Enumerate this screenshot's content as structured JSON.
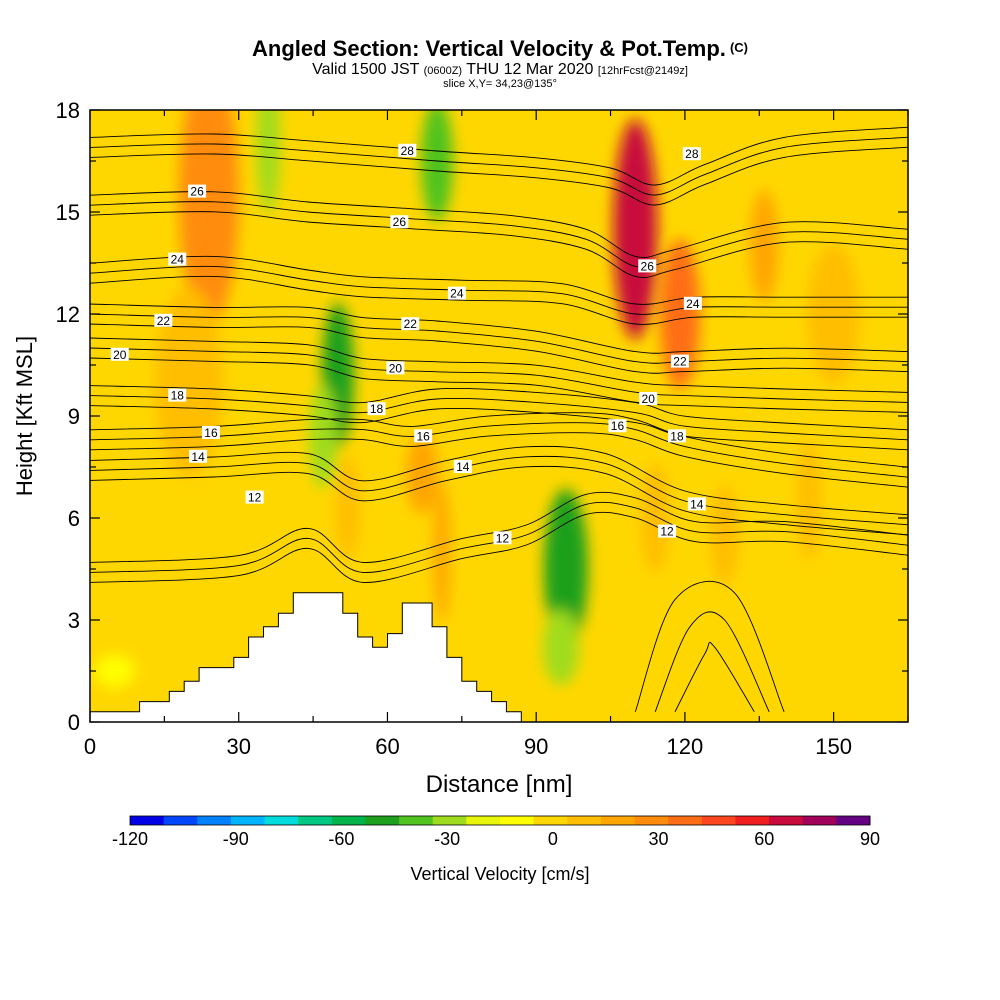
{
  "title": {
    "main": "Angled Section: Vertical Velocity & Pot.Temp.",
    "copyright": "(C)",
    "valid_prefix": "Valid 1500 JST",
    "utc": "(0600Z)",
    "valid_date": "THU 12 Mar 2020",
    "forecast": "[12hrFcst@2149z]",
    "slice": "slice X,Y= 34,23@135°"
  },
  "chart_data": {
    "type": "heatmap",
    "xlabel": "Distance [nm]",
    "ylabel": "Height [Kft MSL]",
    "xlim": [
      0,
      165
    ],
    "ylim": [
      0,
      18
    ],
    "x_ticks": [
      0,
      30,
      60,
      90,
      120,
      150
    ],
    "y_ticks": [
      0,
      3,
      6,
      9,
      12,
      15,
      18
    ],
    "shading_variable": "Vertical Velocity [cm/s]",
    "contour_variable": "Potential Temperature",
    "colorbar": {
      "label": "Vertical Velocity [cm/s]",
      "tick_labels": [
        "-120",
        "-90",
        "-60",
        "-30",
        "0",
        "30",
        "60",
        "90"
      ],
      "bins": [
        -120,
        -110,
        -100,
        -90,
        -80,
        -70,
        -60,
        -50,
        -40,
        -30,
        -20,
        -10,
        0,
        10,
        20,
        30,
        40,
        50,
        60,
        70,
        80,
        90
      ],
      "colors": [
        "#0000e6",
        "#0046ff",
        "#0082ff",
        "#00b4ff",
        "#00dcdc",
        "#00c882",
        "#00b44b",
        "#1ea01e",
        "#50c31e",
        "#a0dc1e",
        "#e6f50a",
        "#ffff00",
        "#ffd700",
        "#ffbe00",
        "#ffa500",
        "#ff8c0a",
        "#ff6e14",
        "#ff461e",
        "#f01e1e",
        "#c80a3c",
        "#a0005a",
        "#640082"
      ]
    },
    "velocity_features": [
      {
        "x": 110,
        "y": 14.5,
        "value": 75
      },
      {
        "x": 119,
        "y": 12,
        "value": 45
      },
      {
        "x": 24,
        "y": 15.5,
        "value": 32
      },
      {
        "x": 20,
        "y": 10,
        "value": 18
      },
      {
        "x": 136,
        "y": 14,
        "value": 22
      },
      {
        "x": 150,
        "y": 12,
        "value": 18
      },
      {
        "x": 67,
        "y": 7.3,
        "value": 28
      },
      {
        "x": 52,
        "y": 6.3,
        "value": 18
      },
      {
        "x": 71,
        "y": 5,
        "value": 24
      },
      {
        "x": 114,
        "y": 6,
        "value": 15
      },
      {
        "x": 128,
        "y": 5.5,
        "value": 14
      },
      {
        "x": 145,
        "y": 6.5,
        "value": 15
      },
      {
        "x": 50,
        "y": 10.2,
        "value": -48
      },
      {
        "x": 47,
        "y": 8.4,
        "value": -28
      },
      {
        "x": 36,
        "y": 17,
        "value": -22
      },
      {
        "x": 70,
        "y": 16.5,
        "value": -32
      },
      {
        "x": 96,
        "y": 4.5,
        "value": -42
      },
      {
        "x": 95,
        "y": 2.2,
        "value": -22
      },
      {
        "x": 5,
        "y": 1.5,
        "value": -5
      },
      {
        "x": 162,
        "y": 11,
        "value": 4
      }
    ],
    "theta_contours": [
      {
        "label": "12",
        "points": [
          [
            0,
            4.4
          ],
          [
            30,
            4.6
          ],
          [
            44,
            5.4
          ],
          [
            55,
            4.4
          ],
          [
            75,
            5.1
          ],
          [
            88,
            5.5
          ],
          [
            100,
            6.4
          ],
          [
            110,
            6.3
          ],
          [
            122,
            5.6
          ],
          [
            140,
            5.6
          ],
          [
            165,
            5.2
          ]
        ]
      },
      {
        "label": "14",
        "points": [
          [
            0,
            7.4
          ],
          [
            25,
            7.5
          ],
          [
            44,
            7.6
          ],
          [
            55,
            6.8
          ],
          [
            72,
            7.4
          ],
          [
            88,
            7.8
          ],
          [
            104,
            7.6
          ],
          [
            120,
            6.5
          ],
          [
            140,
            6.1
          ],
          [
            165,
            5.8
          ]
        ]
      },
      {
        "label": "16",
        "points": [
          [
            0,
            8.3
          ],
          [
            25,
            8.4
          ],
          [
            44,
            8.6
          ],
          [
            55,
            8.6
          ],
          [
            65,
            8.4
          ],
          [
            80,
            8.7
          ],
          [
            100,
            8.8
          ],
          [
            110,
            8.6
          ],
          [
            120,
            8.1
          ],
          [
            140,
            7.6
          ],
          [
            165,
            7.2
          ]
        ]
      },
      {
        "label": "18",
        "points": [
          [
            0,
            9.6
          ],
          [
            25,
            9.5
          ],
          [
            44,
            9.3
          ],
          [
            55,
            9.1
          ],
          [
            70,
            9.5
          ],
          [
            90,
            9.4
          ],
          [
            110,
            9.1
          ],
          [
            120,
            8.7
          ],
          [
            140,
            8.5
          ],
          [
            165,
            8.3
          ]
        ]
      },
      {
        "label": "20",
        "points": [
          [
            0,
            11.0
          ],
          [
            25,
            10.9
          ],
          [
            44,
            10.8
          ],
          [
            55,
            10.4
          ],
          [
            70,
            10.3
          ],
          [
            90,
            10.2
          ],
          [
            110,
            9.7
          ],
          [
            120,
            9.6
          ],
          [
            140,
            9.5
          ],
          [
            165,
            9.4
          ]
        ]
      },
      {
        "label": "22",
        "points": [
          [
            0,
            12.0
          ],
          [
            25,
            11.9
          ],
          [
            44,
            11.9
          ],
          [
            55,
            11.6
          ],
          [
            70,
            11.5
          ],
          [
            90,
            11.2
          ],
          [
            110,
            10.6
          ],
          [
            120,
            10.6
          ],
          [
            140,
            10.7
          ],
          [
            165,
            10.6
          ]
        ]
      },
      {
        "label": "24",
        "points": [
          [
            0,
            13.2
          ],
          [
            25,
            13.4
          ],
          [
            44,
            13.0
          ],
          [
            55,
            12.8
          ],
          [
            75,
            12.7
          ],
          [
            95,
            12.6
          ],
          [
            110,
            12.0
          ],
          [
            122,
            12.2
          ],
          [
            140,
            12.2
          ],
          [
            165,
            12.2
          ]
        ]
      },
      {
        "label": "26",
        "points": [
          [
            0,
            15.2
          ],
          [
            25,
            15.3
          ],
          [
            44,
            15.0
          ],
          [
            65,
            14.8
          ],
          [
            85,
            14.6
          ],
          [
            100,
            14.2
          ],
          [
            110,
            13.4
          ],
          [
            118,
            13.6
          ],
          [
            140,
            14.4
          ],
          [
            165,
            14.2
          ]
        ]
      },
      {
        "label": "28",
        "points": [
          [
            0,
            16.9
          ],
          [
            25,
            17.0
          ],
          [
            44,
            16.8
          ],
          [
            70,
            16.5
          ],
          [
            90,
            16.3
          ],
          [
            105,
            16.0
          ],
          [
            114,
            15.5
          ],
          [
            124,
            16.1
          ],
          [
            140,
            16.9
          ],
          [
            165,
            17.2
          ]
        ]
      }
    ],
    "theta_labels": [
      {
        "text": "26",
        "x": 21.6,
        "y": 15.6
      },
      {
        "text": "24",
        "x": 17.6,
        "y": 13.6
      },
      {
        "text": "22",
        "x": 14.8,
        "y": 11.8
      },
      {
        "text": "20",
        "x": 6.0,
        "y": 10.8
      },
      {
        "text": "18",
        "x": 17.6,
        "y": 9.6
      },
      {
        "text": "16",
        "x": 24.4,
        "y": 8.5
      },
      {
        "text": "14",
        "x": 21.8,
        "y": 7.8
      },
      {
        "text": "12",
        "x": 33.2,
        "y": 6.6
      },
      {
        "text": "28",
        "x": 64.0,
        "y": 16.8
      },
      {
        "text": "26",
        "x": 62.4,
        "y": 14.7
      },
      {
        "text": "24",
        "x": 74.0,
        "y": 12.6
      },
      {
        "text": "22",
        "x": 64.6,
        "y": 11.7
      },
      {
        "text": "20",
        "x": 61.6,
        "y": 10.4
      },
      {
        "text": "18",
        "x": 57.8,
        "y": 9.2
      },
      {
        "text": "16",
        "x": 67.2,
        "y": 8.4
      },
      {
        "text": "14",
        "x": 75.2,
        "y": 7.5
      },
      {
        "text": "12",
        "x": 83.2,
        "y": 5.4
      },
      {
        "text": "28",
        "x": 121.4,
        "y": 16.7
      },
      {
        "text": "26",
        "x": 112.4,
        "y": 13.4
      },
      {
        "text": "24",
        "x": 121.6,
        "y": 12.3
      },
      {
        "text": "22",
        "x": 119.0,
        "y": 10.6
      },
      {
        "text": "20",
        "x": 112.6,
        "y": 9.5
      },
      {
        "text": "16",
        "x": 106.4,
        "y": 8.7
      },
      {
        "text": "18",
        "x": 118.4,
        "y": 8.4
      },
      {
        "text": "14",
        "x": 122.4,
        "y": 6.4
      },
      {
        "text": "12",
        "x": 116.4,
        "y": 5.6
      }
    ],
    "terrain": [
      [
        0,
        0.3
      ],
      [
        10,
        0.3
      ],
      [
        10,
        0.6
      ],
      [
        16,
        0.6
      ],
      [
        16,
        0.9
      ],
      [
        19,
        0.9
      ],
      [
        19,
        1.2
      ],
      [
        22,
        1.2
      ],
      [
        22,
        1.6
      ],
      [
        29,
        1.6
      ],
      [
        29,
        1.9
      ],
      [
        32,
        1.9
      ],
      [
        32,
        2.5
      ],
      [
        35,
        2.5
      ],
      [
        35,
        2.8
      ],
      [
        38,
        2.8
      ],
      [
        38,
        3.2
      ],
      [
        41,
        3.2
      ],
      [
        41,
        3.8
      ],
      [
        51,
        3.8
      ],
      [
        51,
        3.2
      ],
      [
        54,
        3.2
      ],
      [
        54,
        2.5
      ],
      [
        57,
        2.5
      ],
      [
        57,
        2.2
      ],
      [
        60,
        2.2
      ],
      [
        60,
        2.6
      ],
      [
        63,
        2.6
      ],
      [
        63,
        3.5
      ],
      [
        69,
        3.5
      ],
      [
        69,
        2.8
      ],
      [
        72,
        2.8
      ],
      [
        72,
        1.9
      ],
      [
        75,
        1.9
      ],
      [
        75,
        1.2
      ],
      [
        78,
        1.2
      ],
      [
        78,
        0.9
      ],
      [
        81,
        0.9
      ],
      [
        81,
        0.6
      ],
      [
        84,
        0.6
      ],
      [
        84,
        0.3
      ],
      [
        87,
        0.3
      ],
      [
        87,
        0
      ],
      [
        0,
        0
      ]
    ]
  }
}
